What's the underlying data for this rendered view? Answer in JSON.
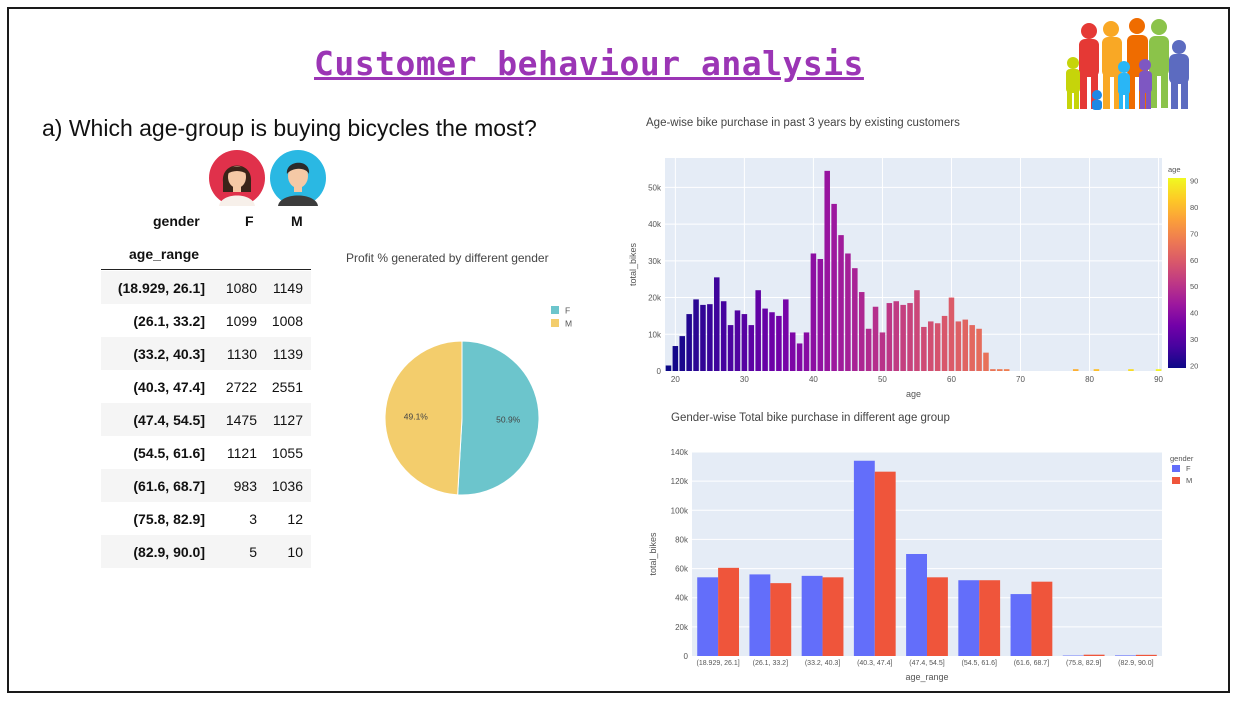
{
  "slide": {
    "title": "Customer behaviour analysis",
    "question": "a) Which age-group is buying bicycles the most?"
  },
  "table": {
    "col_header_label": "gender",
    "col_f": "F",
    "col_m": "M",
    "row_header_label": "age_range",
    "rows": [
      {
        "range": "(18.929, 26.1]",
        "f": "1080",
        "m": "1149"
      },
      {
        "range": "(26.1, 33.2]",
        "f": "1099",
        "m": "1008"
      },
      {
        "range": "(33.2, 40.3]",
        "f": "1130",
        "m": "1139"
      },
      {
        "range": "(40.3, 47.4]",
        "f": "2722",
        "m": "2551"
      },
      {
        "range": "(47.4, 54.5]",
        "f": "1475",
        "m": "1127"
      },
      {
        "range": "(54.5, 61.6]",
        "f": "1121",
        "m": "1055"
      },
      {
        "range": "(61.6, 68.7]",
        "f": "983",
        "m": "1036"
      },
      {
        "range": "(75.8, 82.9]",
        "f": "3",
        "m": "12"
      },
      {
        "range": "(82.9, 90.0]",
        "f": "5",
        "m": "10"
      }
    ]
  },
  "colors": {
    "title": "#9b35b5",
    "female": "#636efa",
    "male": "#ef553b",
    "pie_f": "#6cc5cc",
    "pie_m": "#f3cd6c",
    "plot_bg": "#e5ecf6"
  },
  "chart_data": [
    {
      "type": "pie",
      "title": "Profit % generated by different gender",
      "labels": [
        "F",
        "M"
      ],
      "values": [
        50.9,
        49.1
      ],
      "value_labels": [
        "50.9%",
        "49.1%"
      ],
      "legend": "right"
    },
    {
      "type": "bar",
      "title": "Age-wise bike purchase in past 3 years by existing customers",
      "xlabel": "age",
      "ylabel": "total_bikes",
      "xlim": [
        18.5,
        90.5
      ],
      "ylim": [
        0,
        58000
      ],
      "x_ticks": [
        "20",
        "30",
        "40",
        "50",
        "60",
        "70",
        "80",
        "90"
      ],
      "y_ticks": [
        "0",
        "10k",
        "20k",
        "30k",
        "40k",
        "50k"
      ],
      "colorbar": {
        "title": "age",
        "ticks": [
          "20",
          "30",
          "40",
          "50",
          "60",
          "70",
          "80",
          "90"
        ],
        "range": [
          19,
          91
        ]
      },
      "x": [
        19,
        20,
        21,
        22,
        23,
        24,
        25,
        26,
        27,
        28,
        29,
        30,
        31,
        32,
        33,
        34,
        35,
        36,
        37,
        38,
        39,
        40,
        41,
        42,
        43,
        44,
        45,
        46,
        47,
        48,
        49,
        50,
        51,
        52,
        53,
        54,
        55,
        56,
        57,
        58,
        59,
        60,
        61,
        62,
        63,
        64,
        65,
        66,
        67,
        68,
        78,
        81,
        86,
        90
      ],
      "values": [
        1500,
        6800,
        9500,
        15500,
        19500,
        18000,
        18200,
        25500,
        19000,
        12500,
        16500,
        15500,
        12500,
        22000,
        17000,
        16000,
        15000,
        19500,
        10500,
        7500,
        10500,
        32000,
        30500,
        54500,
        45500,
        37000,
        32000,
        28000,
        21500,
        11500,
        17500,
        10500,
        18500,
        19000,
        18000,
        18500,
        22000,
        12000,
        13500,
        13000,
        15000,
        20000,
        13500,
        14000,
        12500,
        11500,
        5000,
        500,
        500,
        500,
        500,
        500,
        500,
        500
      ]
    },
    {
      "type": "bar",
      "title": "Gender-wise Total bike purchase in different age group",
      "xlabel": "age_range",
      "ylabel": "total_bikes",
      "ylim": [
        0,
        140000
      ],
      "y_ticks": [
        "0",
        "20k",
        "40k",
        "60k",
        "80k",
        "100k",
        "120k",
        "140k"
      ],
      "legend_title": "gender",
      "categories": [
        "(18.929, 26.1]",
        "(26.1, 33.2]",
        "(33.2, 40.3]",
        "(40.3, 47.4]",
        "(47.4, 54.5]",
        "(54.5, 61.6]",
        "(61.6, 68.7]",
        "(75.8, 82.9]",
        "(82.9, 90.0]"
      ],
      "series": [
        {
          "name": "F",
          "values": [
            54000,
            56000,
            55000,
            134000,
            70000,
            52000,
            42500,
            300,
            400
          ]
        },
        {
          "name": "M",
          "values": [
            60500,
            50000,
            54000,
            126500,
            54000,
            52000,
            51000,
            900,
            800
          ]
        }
      ]
    }
  ]
}
